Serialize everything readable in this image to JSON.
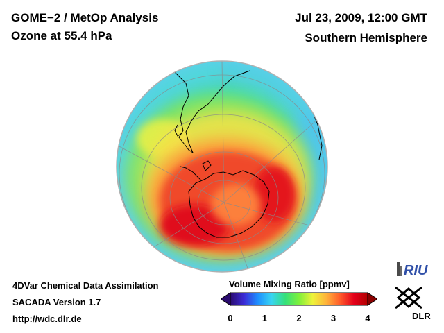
{
  "header": {
    "title": "GOME−2 / MetOp Analysis",
    "subtitle": "Ozone at 55.4 hPa",
    "datetime": "Jul 23, 2009, 12:00 GMT",
    "region": "Southern Hemisphere"
  },
  "footer": {
    "line1": "4DVar Chemical Data Assimilation",
    "line2": "SACADA Version 1.7",
    "line3": "http://wdc.dlr.de"
  },
  "colorbar": {
    "title": "Volume Mixing Ratio [ppmv]",
    "ticks": [
      "0",
      "1",
      "2",
      "3",
      "4"
    ],
    "range": [
      0,
      4
    ],
    "colors": [
      "#2a0a6e",
      "#3b2bd6",
      "#1e8fff",
      "#38d4f2",
      "#35e07a",
      "#7ef03a",
      "#eef23a",
      "#ffb23a",
      "#ff5a2a",
      "#e3001a",
      "#b20000"
    ]
  },
  "logos": {
    "riu": "RIU",
    "dlr": "DLR",
    "riu_icon": "riu-logo-icon",
    "dlr_icon": "dlr-logo-icon"
  }
}
